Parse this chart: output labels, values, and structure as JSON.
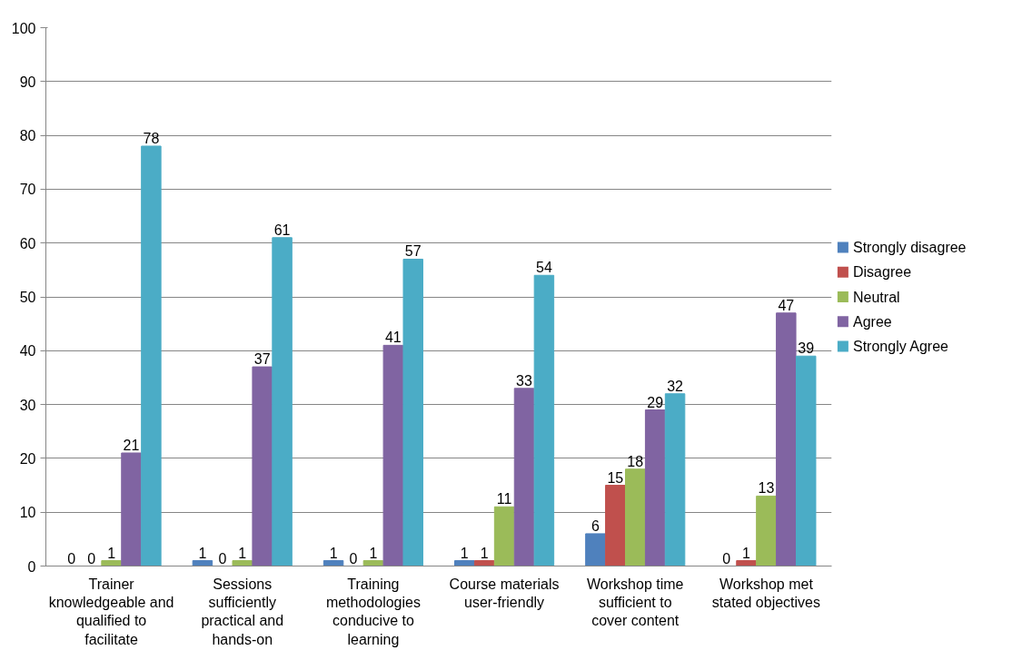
{
  "chart_data": {
    "type": "bar",
    "categories": [
      "Trainer knowledgeable and qualified to facilitate",
      "Sessions sufficiently practical and hands-on",
      "Training methodologies conducive to learning",
      "Course materials user-friendly",
      "Workshop time sufficient to cover content",
      "Workshop met stated objectives"
    ],
    "series": [
      {
        "name": "Strongly disagree",
        "color": "#4f81bd",
        "values": [
          0,
          1,
          1,
          1,
          6,
          0
        ]
      },
      {
        "name": "Disagree",
        "color": "#c0504d",
        "values": [
          0,
          0,
          0,
          1,
          15,
          1
        ]
      },
      {
        "name": "Neutral",
        "color": "#9bbb59",
        "values": [
          1,
          1,
          1,
          11,
          18,
          13
        ]
      },
      {
        "name": "Agree",
        "color": "#8064a2",
        "values": [
          21,
          37,
          41,
          33,
          29,
          47
        ]
      },
      {
        "name": "Strongly Agree",
        "color": "#4bacc6",
        "values": [
          78,
          61,
          57,
          54,
          32,
          39
        ]
      }
    ],
    "ylim": [
      0,
      100
    ],
    "yticks": [
      0,
      10,
      20,
      30,
      40,
      50,
      60,
      70,
      80,
      90,
      100
    ],
    "grid": "y",
    "legend": "right",
    "data_labels": true
  }
}
